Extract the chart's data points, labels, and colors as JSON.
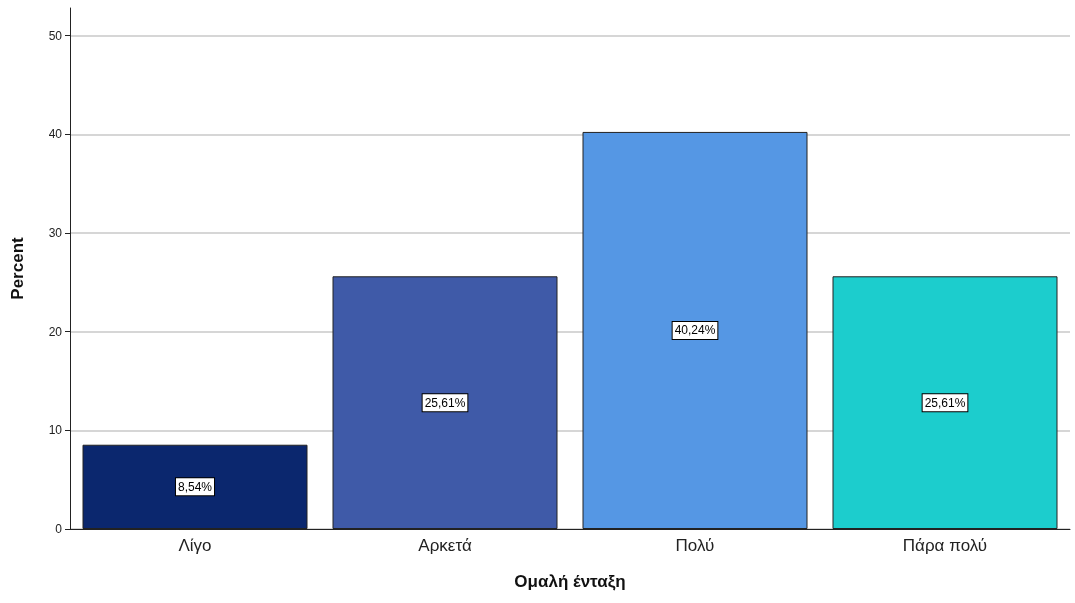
{
  "chart_data": {
    "type": "bar",
    "xlabel": "Ομαλή ένταξη",
    "ylabel": "Percent",
    "categories": [
      "Λίγο",
      "Αρκετά",
      "Πολύ",
      "Πάρα πολύ"
    ],
    "values": [
      8.54,
      25.61,
      40.24,
      25.61
    ],
    "colors": [
      "#0b276e",
      "#3f5aa8",
      "#5597e4",
      "#1ccdcd"
    ],
    "value_labels": [
      "8,54%",
      "25,61%",
      "40,24%",
      "25,61%"
    ],
    "ylim": [
      0,
      52.8
    ],
    "yticks": [
      0,
      10,
      20,
      30,
      40,
      50
    ],
    "grid": "y"
  }
}
